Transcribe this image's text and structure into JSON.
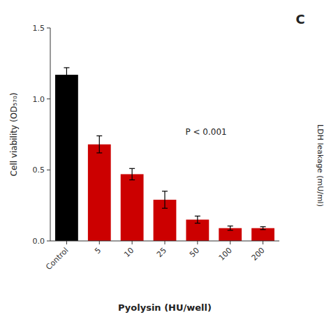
{
  "chart_data": {
    "type": "bar",
    "categories": [
      "Control",
      "5",
      "10",
      "25",
      "50",
      "100",
      "200"
    ],
    "values": [
      1.17,
      0.68,
      0.47,
      0.29,
      0.15,
      0.09,
      0.09
    ],
    "errors": [
      0.05,
      0.06,
      0.04,
      0.06,
      0.025,
      0.015,
      0.01
    ],
    "colors": [
      "#000000",
      "#cc0000",
      "#cc0000",
      "#cc0000",
      "#cc0000",
      "#cc0000",
      "#cc0000"
    ],
    "ylabel": "Cell viability (OD₅₇₀)",
    "xlabel": "Pyolysin (HU/well)",
    "ylim": [
      0,
      1.5
    ],
    "yticks": [
      {
        "value": 0,
        "label": "0.0"
      },
      0.5,
      {
        "value": 1.0,
        "label": "1.0"
      },
      1.5
    ],
    "annotations": [
      "P < 0.001",
      "C",
      "LDH leakage (mU/ml)"
    ],
    "grid": false
  }
}
